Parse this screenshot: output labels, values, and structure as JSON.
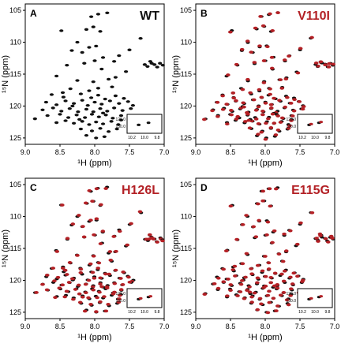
{
  "colors": {
    "black": "#111111",
    "red": "#b32025",
    "frame": "#000000"
  },
  "chart_data": [
    {
      "type": "scatter",
      "panel_label": "A",
      "variant": "WT",
      "variant_color": "#111111",
      "xlabel": "¹H (ppm)",
      "ylabel": "¹⁵N (ppm)",
      "xlim": [
        9.0,
        7.0
      ],
      "ylim": [
        126,
        104
      ],
      "xticks": [
        "9.0",
        "8.5",
        "8.0",
        "7.5",
        "7.0"
      ],
      "yticks": [
        "105",
        "110",
        "115",
        "120",
        "125"
      ],
      "series": [
        {
          "name": "WT",
          "color": "#111111"
        }
      ],
      "inset": {
        "xticks": [
          "10.2",
          "10.0",
          "9.8"
        ],
        "yticks": [
          "129.0",
          "130.0"
        ]
      }
    },
    {
      "type": "scatter",
      "panel_label": "B",
      "variant": "V110I",
      "variant_color": "#b32025",
      "xlabel": "¹H (ppm)",
      "ylabel": "¹⁵N (ppm)",
      "xlim": [
        9.0,
        7.0
      ],
      "ylim": [
        126,
        104
      ],
      "xticks": [
        "9.0",
        "8.5",
        "8.0",
        "7.5",
        "7.0"
      ],
      "yticks": [
        "105",
        "110",
        "115",
        "120",
        "125"
      ],
      "series": [
        {
          "name": "WT",
          "color": "#111111"
        },
        {
          "name": "V110I",
          "color": "#b32025"
        }
      ],
      "inset": {
        "xticks": [
          "10.2",
          "10.0",
          "9.8"
        ],
        "yticks": [
          "129.0",
          "130.0"
        ]
      }
    },
    {
      "type": "scatter",
      "panel_label": "C",
      "variant": "H126L",
      "variant_color": "#b32025",
      "xlabel": "¹H (ppm)",
      "ylabel": "¹⁵N (ppm)",
      "xlim": [
        9.0,
        7.0
      ],
      "ylim": [
        126,
        104
      ],
      "xticks": [
        "9.0",
        "8.5",
        "8.0",
        "7.5",
        "7.0"
      ],
      "yticks": [
        "105",
        "110",
        "115",
        "120",
        "125"
      ],
      "series": [
        {
          "name": "WT",
          "color": "#111111"
        },
        {
          "name": "H126L",
          "color": "#b32025"
        }
      ],
      "inset": {
        "xticks": [
          "10.2",
          "10.0",
          "9.8"
        ],
        "yticks": [
          "129.0",
          "130.0"
        ]
      }
    },
    {
      "type": "scatter",
      "panel_label": "D",
      "variant": "E115G",
      "variant_color": "#b32025",
      "xlabel": "¹H (ppm)",
      "ylabel": "¹⁵N (ppm)",
      "xlim": [
        9.0,
        7.0
      ],
      "ylim": [
        126,
        104
      ],
      "xticks": [
        "9.0",
        "8.5",
        "8.0",
        "7.5",
        "7.0"
      ],
      "yticks": [
        "105",
        "110",
        "115",
        "120",
        "125"
      ],
      "series": [
        {
          "name": "WT",
          "color": "#111111"
        },
        {
          "name": "E115G",
          "color": "#b32025"
        }
      ],
      "inset": {
        "xticks": [
          "10.2",
          "10.0",
          "9.8"
        ],
        "yticks": [
          "129.0",
          "130.0"
        ]
      }
    }
  ],
  "peaks": [
    [
      8.05,
      106.0
    ],
    [
      7.95,
      105.6
    ],
    [
      7.82,
      105.4
    ],
    [
      8.48,
      108.2
    ],
    [
      8.12,
      108.0
    ],
    [
      8.02,
      107.6
    ],
    [
      7.92,
      108.3
    ],
    [
      8.25,
      110.0
    ],
    [
      8.18,
      111.6
    ],
    [
      8.08,
      110.8
    ],
    [
      8.33,
      111.3
    ],
    [
      7.98,
      110.6
    ],
    [
      7.5,
      111.2
    ],
    [
      7.88,
      112.4
    ],
    [
      7.72,
      113.0
    ],
    [
      7.65,
      112.1
    ],
    [
      8.4,
      113.6
    ],
    [
      8.15,
      113.3
    ],
    [
      7.9,
      114.2
    ],
    [
      7.55,
      114.6
    ],
    [
      7.8,
      115.8
    ],
    [
      8.02,
      116.2
    ],
    [
      8.55,
      115.3
    ],
    [
      8.25,
      116.0
    ],
    [
      7.95,
      117.2
    ],
    [
      8.08,
      117.6
    ],
    [
      8.35,
      117.3
    ],
    [
      7.75,
      117.0
    ],
    [
      8.62,
      118.2
    ],
    [
      8.45,
      118.6
    ],
    [
      8.2,
      118.1
    ],
    [
      8.05,
      118.7
    ],
    [
      7.95,
      118.3
    ],
    [
      7.85,
      118.9
    ],
    [
      7.7,
      118.4
    ],
    [
      7.58,
      118.8
    ],
    [
      8.7,
      119.4
    ],
    [
      8.55,
      119.8
    ],
    [
      8.42,
      119.2
    ],
    [
      8.3,
      119.6
    ],
    [
      8.18,
      119.1
    ],
    [
      8.1,
      119.9
    ],
    [
      8.0,
      119.4
    ],
    [
      7.9,
      119.7
    ],
    [
      7.78,
      119.2
    ],
    [
      7.65,
      119.6
    ],
    [
      7.52,
      119.3
    ],
    [
      7.45,
      119.9
    ],
    [
      8.75,
      120.6
    ],
    [
      8.6,
      120.3
    ],
    [
      8.48,
      120.8
    ],
    [
      8.36,
      120.4
    ],
    [
      8.24,
      120.9
    ],
    [
      8.12,
      120.5
    ],
    [
      8.02,
      120.9
    ],
    [
      7.92,
      120.4
    ],
    [
      7.82,
      120.8
    ],
    [
      7.72,
      120.3
    ],
    [
      7.6,
      120.7
    ],
    [
      7.48,
      120.4
    ],
    [
      8.68,
      121.5
    ],
    [
      8.5,
      121.3
    ],
    [
      8.38,
      121.8
    ],
    [
      8.26,
      121.4
    ],
    [
      8.14,
      121.8
    ],
    [
      8.04,
      121.3
    ],
    [
      7.94,
      121.7
    ],
    [
      7.84,
      121.4
    ],
    [
      7.74,
      121.9
    ],
    [
      7.62,
      121.5
    ],
    [
      7.5,
      121.8
    ],
    [
      8.86,
      122.0
    ],
    [
      8.55,
      122.6
    ],
    [
      8.42,
      122.3
    ],
    [
      8.3,
      122.7
    ],
    [
      8.18,
      122.4
    ],
    [
      8.08,
      122.9
    ],
    [
      7.98,
      122.5
    ],
    [
      7.88,
      122.8
    ],
    [
      7.76,
      122.4
    ],
    [
      7.66,
      122.9
    ],
    [
      8.2,
      123.6
    ],
    [
      8.04,
      123.9
    ],
    [
      7.92,
      123.5
    ],
    [
      7.8,
      124.0
    ],
    [
      7.68,
      123.6
    ],
    [
      8.12,
      124.6
    ],
    [
      7.98,
      125.0
    ],
    [
      7.86,
      124.8
    ],
    [
      7.62,
      122.2
    ],
    [
      8.32,
      120.0
    ],
    [
      8.46,
      117.9
    ],
    [
      7.7,
      115.5
    ],
    [
      8.0,
      112.9
    ],
    [
      7.88,
      121.1
    ],
    [
      8.22,
      122.1
    ],
    [
      7.2,
      113.0
    ],
    [
      7.14,
      113.5
    ],
    [
      7.06,
      113.3
    ],
    [
      7.24,
      113.8
    ],
    [
      7.1,
      113.9
    ],
    [
      7.02,
      113.6
    ],
    [
      7.18,
      113.3
    ],
    [
      7.28,
      113.5
    ],
    [
      7.34,
      109.4
    ]
  ],
  "inset_peaks": [
    [
      10.1,
      129.6
    ],
    [
      9.93,
      129.4
    ]
  ]
}
